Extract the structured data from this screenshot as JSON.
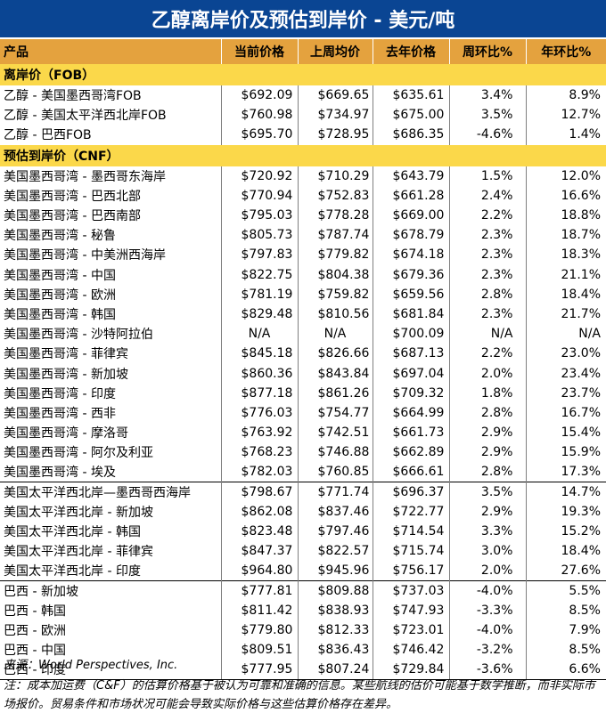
{
  "title": "乙醇离岸价及预估到岸价 - 美元/吨",
  "headers": [
    "产品",
    "当前价格",
    "上周均价",
    "去年价格",
    "周环比%",
    "年环比%"
  ],
  "sections": [
    {
      "label": "离岸价（FOB）",
      "groups": [
        [
          [
            "乙醇 - 美国墨西哥湾FOB",
            "$692.09",
            "$669.65",
            "$635.61",
            "3.4%",
            "8.9%"
          ],
          [
            "乙醇 - 美国太平洋西北岸FOB",
            "$760.98",
            "$734.97",
            "$675.00",
            "3.5%",
            "12.7%"
          ],
          [
            "乙醇 - 巴西FOB",
            "$695.70",
            "$728.95",
            "$686.35",
            "-4.6%",
            "1.4%"
          ]
        ]
      ]
    },
    {
      "label": "预估到岸价（CNF）",
      "groups": [
        [
          [
            "美国墨西哥湾 - 墨西哥东海岸",
            "$720.92",
            "$710.29",
            "$643.79",
            "1.5%",
            "12.0%"
          ],
          [
            "美国墨西哥湾 - 巴西北部",
            "$770.94",
            "$752.83",
            "$661.28",
            "2.4%",
            "16.6%"
          ],
          [
            "美国墨西哥湾 - 巴西南部",
            "$795.03",
            "$778.28",
            "$669.00",
            "2.2%",
            "18.8%"
          ],
          [
            "美国墨西哥湾 - 秘鲁",
            "$805.73",
            "$787.74",
            "$678.79",
            "2.3%",
            "18.7%"
          ],
          [
            "美国墨西哥湾 - 中美洲西海岸",
            "$797.83",
            "$779.82",
            "$674.18",
            "2.3%",
            "18.3%"
          ],
          [
            "美国墨西哥湾 - 中国",
            "$822.75",
            "$804.38",
            "$679.36",
            "2.3%",
            "21.1%"
          ],
          [
            "美国墨西哥湾 - 欧洲",
            "$781.19",
            "$759.82",
            "$659.56",
            "2.8%",
            "18.4%"
          ],
          [
            "美国墨西哥湾 - 韩国",
            "$829.48",
            "$810.56",
            "$681.84",
            "2.3%",
            "21.7%"
          ],
          [
            "美国墨西哥湾 - 沙特阿拉伯",
            "N/A",
            "N/A",
            "$700.09",
            "N/A",
            "N/A"
          ],
          [
            "美国墨西哥湾 - 菲律宾",
            "$845.18",
            "$826.66",
            "$687.13",
            "2.2%",
            "23.0%"
          ],
          [
            "美国墨西哥湾 - 新加坡",
            "$860.36",
            "$843.84",
            "$697.04",
            "2.0%",
            "23.4%"
          ],
          [
            "美国墨西哥湾 - 印度",
            "$877.18",
            "$861.26",
            "$709.32",
            "1.8%",
            "23.7%"
          ],
          [
            "美国墨西哥湾 - 西非",
            "$776.03",
            "$754.77",
            "$664.99",
            "2.8%",
            "16.7%"
          ],
          [
            "美国墨西哥湾 - 摩洛哥",
            "$763.92",
            "$742.51",
            "$661.73",
            "2.9%",
            "15.4%"
          ],
          [
            "美国墨西哥湾 - 阿尔及利亚",
            "$768.23",
            "$746.88",
            "$662.89",
            "2.9%",
            "15.9%"
          ],
          [
            "美国墨西哥湾 - 埃及",
            "$782.03",
            "$760.85",
            "$666.61",
            "2.8%",
            "17.3%"
          ]
        ],
        [
          [
            "美国太平洋西北岸—墨西哥西海岸",
            "$798.67",
            "$771.74",
            "$696.37",
            "3.5%",
            "14.7%"
          ],
          [
            "美国太平洋西北岸 - 新加坡",
            "$862.08",
            "$837.46",
            "$722.77",
            "2.9%",
            "19.3%"
          ],
          [
            "美国太平洋西北岸 - 韩国",
            "$823.48",
            "$797.46",
            "$714.54",
            "3.3%",
            "15.2%"
          ],
          [
            "美国太平洋西北岸 - 菲律宾",
            "$847.37",
            "$822.57",
            "$715.74",
            "3.0%",
            "18.4%"
          ],
          [
            "美国太平洋西北岸 - 印度",
            "$964.80",
            "$945.96",
            "$756.17",
            "2.0%",
            "27.6%"
          ]
        ],
        [
          [
            "巴西 - 新加坡",
            "$777.81",
            "$809.88",
            "$737.03",
            "-4.0%",
            "5.5%"
          ],
          [
            "巴西 - 韩国",
            "$811.42",
            "$838.93",
            "$747.93",
            "-3.3%",
            "8.5%"
          ],
          [
            "巴西 - 欧洲",
            "$779.80",
            "$812.33",
            "$723.01",
            "-4.0%",
            "7.9%"
          ],
          [
            "巴西 - 中国",
            "$809.51",
            "$836.43",
            "$746.42",
            "-3.2%",
            "8.5%"
          ],
          [
            "巴西 - 印度",
            "$777.95",
            "$807.24",
            "$729.84",
            "-3.6%",
            "6.6%"
          ]
        ]
      ]
    }
  ],
  "source": "来源：World Perspectives, Inc.",
  "note": "注：成本加运费（C&F）的估算价格基于被认为可靠和准确的信息。某些航线的估价可能基于数学推断，而非实际市场报价。贸易条件和市场状况可能会导致实际价格与这些估算价格存在差异。"
}
